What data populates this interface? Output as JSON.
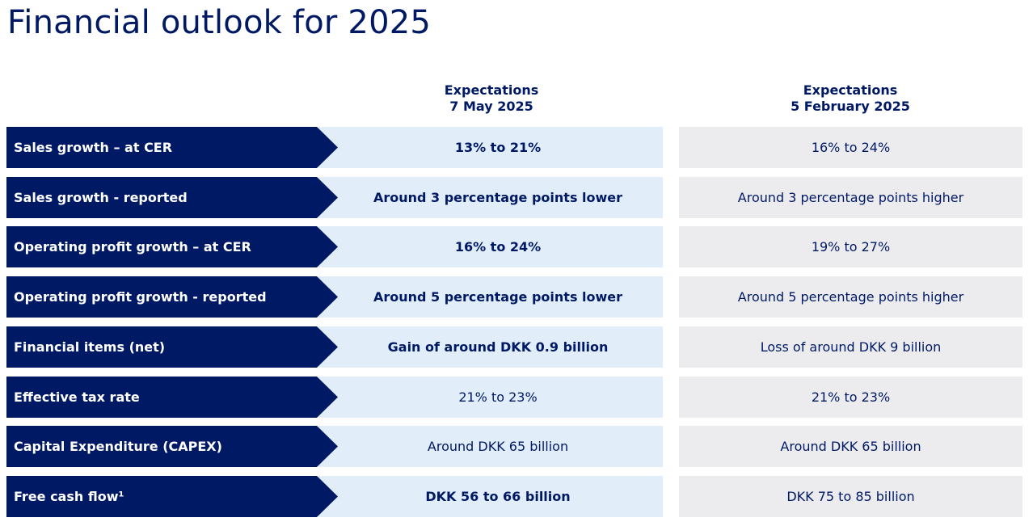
{
  "title": "Financial outlook for 2025",
  "columns": {
    "current": {
      "line1": "Expectations",
      "line2": "7 May 2025"
    },
    "previous": {
      "line1": "Expectations",
      "line2": "5 February 2025"
    }
  },
  "colors": {
    "label_bg": "#001965",
    "current_bg": "#e1eef9",
    "previous_bg": "#ececee",
    "text": "#001965"
  },
  "rows": [
    {
      "label": "Sales growth – at CER",
      "current": "13% to 21%",
      "previous": "16% to 24%",
      "current_bold": true
    },
    {
      "label": "Sales growth - reported",
      "current": "Around 3 percentage points lower",
      "previous": "Around 3 percentage points higher",
      "current_bold": true
    },
    {
      "label": "Operating profit growth – at CER",
      "current": "16% to 24%",
      "previous": "19% to 27%",
      "current_bold": true
    },
    {
      "label": "Operating profit growth - reported",
      "current": "Around 5 percentage points lower",
      "previous": "Around 5 percentage points higher",
      "current_bold": true
    },
    {
      "label": "Financial items (net)",
      "current": "Gain of around DKK 0.9 billion",
      "previous": "Loss of around DKK 9 billion",
      "current_bold": true
    },
    {
      "label": "Effective tax rate",
      "current": "21% to 23%",
      "previous": "21% to 23%",
      "current_bold": false
    },
    {
      "label": "Capital Expenditure (CAPEX)",
      "current": "Around DKK 65 billion",
      "previous": "Around DKK 65 billion",
      "current_bold": false
    },
    {
      "label": "Free cash flow¹",
      "current": "DKK 56 to 66 billion",
      "previous": "DKK 75 to 85 billion",
      "current_bold": true
    }
  ]
}
